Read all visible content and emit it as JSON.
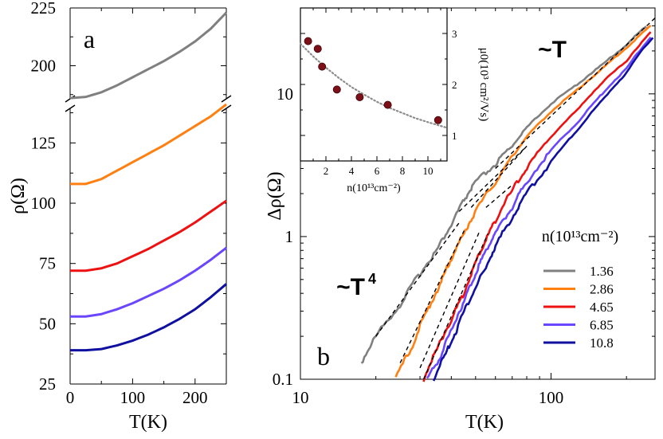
{
  "chart_data": [
    {
      "panel": "a",
      "type": "line",
      "panel_label": "a",
      "xlabel": "T(K)",
      "ylabel": "ρ(Ω)",
      "xlim": [
        0,
        250
      ],
      "xticks": [
        "0",
        "100",
        "200"
      ],
      "ylim_lower": [
        25,
        140
      ],
      "yticks_lower": [
        "25",
        "50",
        "75",
        "100",
        "125"
      ],
      "ylim_upper": [
        185,
        225
      ],
      "yticks_upper": [
        "200",
        "225"
      ],
      "axis_break": true,
      "series": [
        {
          "name": "1.36",
          "color": "#808080",
          "T": [
            0,
            25,
            50,
            75,
            100,
            125,
            150,
            175,
            200,
            225,
            250
          ],
          "rho": [
            186,
            186.5,
            188.5,
            191.5,
            195,
            198.5,
            202,
            206,
            210.5,
            216,
            223
          ]
        },
        {
          "name": "2.86",
          "color": "#ff7f10",
          "T": [
            0,
            25,
            50,
            75,
            100,
            125,
            150,
            175,
            200,
            225,
            250
          ],
          "rho": [
            108,
            108,
            110,
            113.5,
            117,
            120.5,
            124,
            128,
            132,
            136,
            141
          ]
        },
        {
          "name": "4.65",
          "color": "#ee1111",
          "T": [
            0,
            25,
            50,
            75,
            100,
            125,
            150,
            175,
            200,
            225,
            250
          ],
          "rho": [
            72,
            72,
            73,
            75,
            78,
            81,
            84.5,
            88,
            92,
            96.5,
            101
          ]
        },
        {
          "name": "6.85",
          "color": "#6a46ff",
          "T": [
            0,
            25,
            50,
            75,
            100,
            125,
            150,
            175,
            200,
            225,
            250
          ],
          "rho": [
            53,
            53,
            54,
            56,
            58.5,
            61.5,
            64.5,
            68,
            72,
            76.5,
            81.5
          ]
        },
        {
          "name": "10.8",
          "color": "#1010a0",
          "T": [
            0,
            25,
            50,
            75,
            100,
            125,
            150,
            175,
            200,
            225,
            250
          ],
          "rho": [
            39,
            39,
            39.5,
            41,
            43,
            45.5,
            48.5,
            52,
            56,
            61,
            66.5
          ]
        }
      ]
    },
    {
      "panel": "b",
      "type": "line",
      "scale": "log-log",
      "panel_label": "b",
      "xlabel": "T(K)",
      "ylabel": "Δρ(Ω)",
      "xlim": [
        10,
        260
      ],
      "ylim": [
        0.1,
        40
      ],
      "xticks": [
        "10",
        "100"
      ],
      "yticks": [
        "0.1",
        "1",
        "10"
      ],
      "annotations": [
        "~T",
        "~T4"
      ],
      "legend_title": "n(10¹³cm⁻²)",
      "legend_placement": "right",
      "series": [
        {
          "name": "1.36",
          "color": "#808080",
          "T": [
            17.5,
            20,
            25,
            30,
            35,
            40,
            45,
            50,
            60,
            70,
            80,
            100,
            130,
            160,
            200,
            240
          ],
          "drho": [
            0.13,
            0.2,
            0.33,
            0.55,
            0.8,
            1.2,
            1.8,
            2.4,
            3.2,
            4.3,
            5.8,
            8.5,
            12,
            16,
            22,
            30
          ]
        },
        {
          "name": "2.86",
          "color": "#ff7f10",
          "T": [
            24,
            28,
            32,
            36,
            40,
            45,
            50,
            60,
            70,
            80,
            100,
            130,
            160,
            200,
            250
          ],
          "drho": [
            0.1,
            0.17,
            0.3,
            0.45,
            0.7,
            1.05,
            1.5,
            2.4,
            3.6,
            5,
            7.5,
            11,
            15,
            21,
            30
          ]
        },
        {
          "name": "4.65",
          "color": "#ee1111",
          "T": [
            31,
            35,
            40,
            45,
            50,
            55,
            60,
            70,
            80,
            100,
            130,
            160,
            200,
            250
          ],
          "drho": [
            0.1,
            0.16,
            0.26,
            0.4,
            0.65,
            0.95,
            1.3,
            2.1,
            3,
            5,
            8,
            12,
            17,
            27
          ]
        },
        {
          "name": "6.85",
          "color": "#6a46ff",
          "T": [
            32,
            36,
            40,
            45,
            50,
            55,
            60,
            70,
            80,
            100,
            130,
            160,
            200,
            250
          ],
          "drho": [
            0.1,
            0.14,
            0.22,
            0.35,
            0.55,
            0.8,
            1.05,
            1.6,
            2.4,
            4,
            6.5,
            10,
            15,
            25
          ]
        },
        {
          "name": "10.8",
          "color": "#1010a0",
          "T": [
            34,
            38,
            42,
            48,
            55,
            60,
            70,
            80,
            100,
            130,
            160,
            200,
            255
          ],
          "drho": [
            0.1,
            0.15,
            0.22,
            0.38,
            0.6,
            0.85,
            1.35,
            2,
            3.3,
            5.8,
            9,
            14,
            25
          ]
        }
      ],
      "fits": [
        {
          "law": "~T",
          "T": [
            60,
            260
          ],
          "drho": [
            3.0,
            34
          ]
        },
        {
          "law": "~T4",
          "curve": "1.36",
          "T": [
            20,
            43
          ],
          "drho": [
            0.2,
            1.25
          ]
        },
        {
          "law": "~T4",
          "curve": "2.86",
          "T": [
            25,
            45
          ],
          "drho": [
            0.13,
            1.1
          ]
        },
        {
          "law": "~T4",
          "curve": "4.65",
          "T": [
            30,
            52
          ],
          "drho": [
            0.12,
            1.1
          ]
        },
        {
          "law": "~T4",
          "curve": "6.85",
          "T": [
            31,
            56
          ],
          "drho": [
            0.1,
            1.05
          ]
        },
        {
          "law": "~T",
          "curve": "1.36",
          "T": [
            43,
            80
          ],
          "drho": [
            1.5,
            4.3
          ]
        },
        {
          "law": "~T",
          "curve": "2.86",
          "T": [
            48,
            80
          ],
          "drho": [
            1.6,
            4.3
          ]
        },
        {
          "law": "~T",
          "curve": "4.65",
          "T": [
            55,
            70
          ],
          "drho": [
            1.6,
            2.3
          ]
        }
      ]
    },
    {
      "panel": "b-inset",
      "type": "scatter",
      "xlabel": "n(10¹³cm⁻²)",
      "ylabel": "μ0(10³ cm²/Vs)",
      "xlim": [
        0,
        11.5
      ],
      "ylim": [
        0.5,
        3.5
      ],
      "xticks": [
        "2",
        "4",
        "6",
        "8",
        "10"
      ],
      "yticks": [
        "1",
        "2",
        "3"
      ],
      "points": {
        "n": [
          0.6,
          1.36,
          1.7,
          2.86,
          4.65,
          6.85,
          10.8
        ],
        "mu": [
          2.85,
          2.7,
          2.35,
          1.9,
          1.75,
          1.6,
          1.3
        ]
      },
      "fit": {
        "n": [
          0,
          1,
          2,
          3,
          4,
          5,
          6,
          7,
          8,
          9,
          10,
          11.5
        ],
        "mu": [
          2.8,
          2.55,
          2.33,
          2.13,
          1.95,
          1.8,
          1.66,
          1.54,
          1.44,
          1.34,
          1.26,
          1.15
        ]
      }
    }
  ]
}
